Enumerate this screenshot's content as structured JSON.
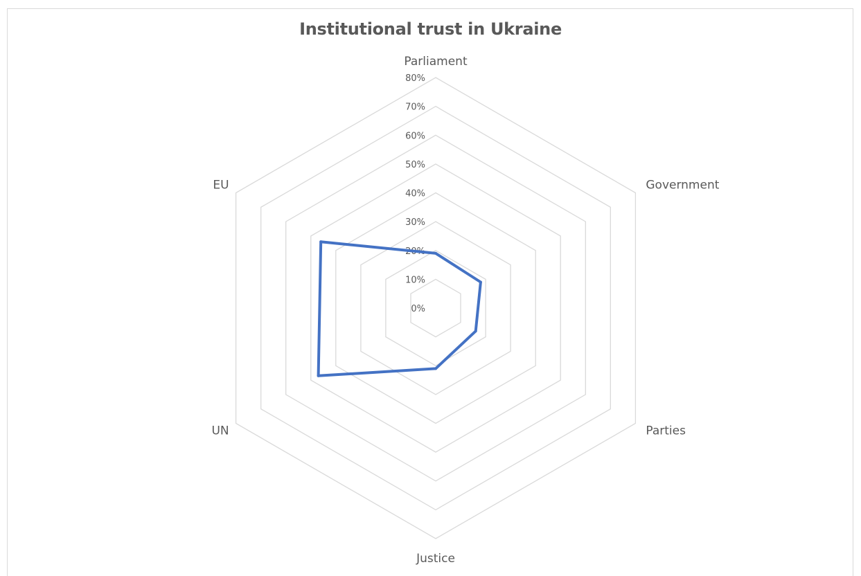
{
  "chart_data": {
    "type": "radar",
    "title": "Institutional trust in Ukraine",
    "categories": [
      "Parliament",
      "Government",
      "Parties",
      "Justice",
      "UN",
      "EU"
    ],
    "series": [
      {
        "values": [
          0.19,
          0.18,
          0.16,
          0.21,
          0.47,
          0.46
        ]
      }
    ],
    "r_range": [
      0,
      0.8
    ],
    "r_ticks": [
      "0%",
      "10%",
      "20%",
      "30%",
      "40%",
      "50%",
      "60%",
      "70%",
      "80%"
    ],
    "gridlines": true,
    "legend": "none",
    "colors": {
      "series": "#4472c4",
      "grid": "#d9d9d9",
      "text": "#595959"
    }
  }
}
